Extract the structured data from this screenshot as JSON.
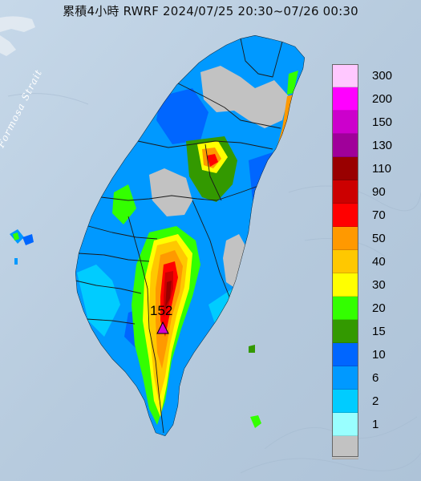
{
  "title": "累積4小時 RWRF 2024/07/25 20:30~07/26 00:30",
  "strait_label": "Formosa Strait",
  "max_marker": {
    "value": "152",
    "icon": "triangle-marker-icon",
    "color": "#d400d4"
  },
  "legend": {
    "items": [
      {
        "label": "300",
        "color": "#ffc8ff"
      },
      {
        "label": "200",
        "color": "#ff00ff"
      },
      {
        "label": "150",
        "color": "#cc00cc"
      },
      {
        "label": "130",
        "color": "#a0009a"
      },
      {
        "label": "110",
        "color": "#990000"
      },
      {
        "label": "90",
        "color": "#cc0000"
      },
      {
        "label": "70",
        "color": "#ff0000"
      },
      {
        "label": "50",
        "color": "#ff9900"
      },
      {
        "label": "40",
        "color": "#ffc800"
      },
      {
        "label": "30",
        "color": "#ffff00"
      },
      {
        "label": "20",
        "color": "#33ff00"
      },
      {
        "label": "15",
        "color": "#339900"
      },
      {
        "label": "10",
        "color": "#0066ff"
      },
      {
        "label": "6",
        "color": "#0099ff"
      },
      {
        "label": "2",
        "color": "#00ccff"
      },
      {
        "label": "1",
        "color": "#99ffff"
      },
      {
        "label": "",
        "color": "#c2c2c2"
      }
    ]
  },
  "colors": {
    "sea": "#b9cde0",
    "no_rain": "#c2c2c2",
    "county_border": "#1a1a1a"
  }
}
